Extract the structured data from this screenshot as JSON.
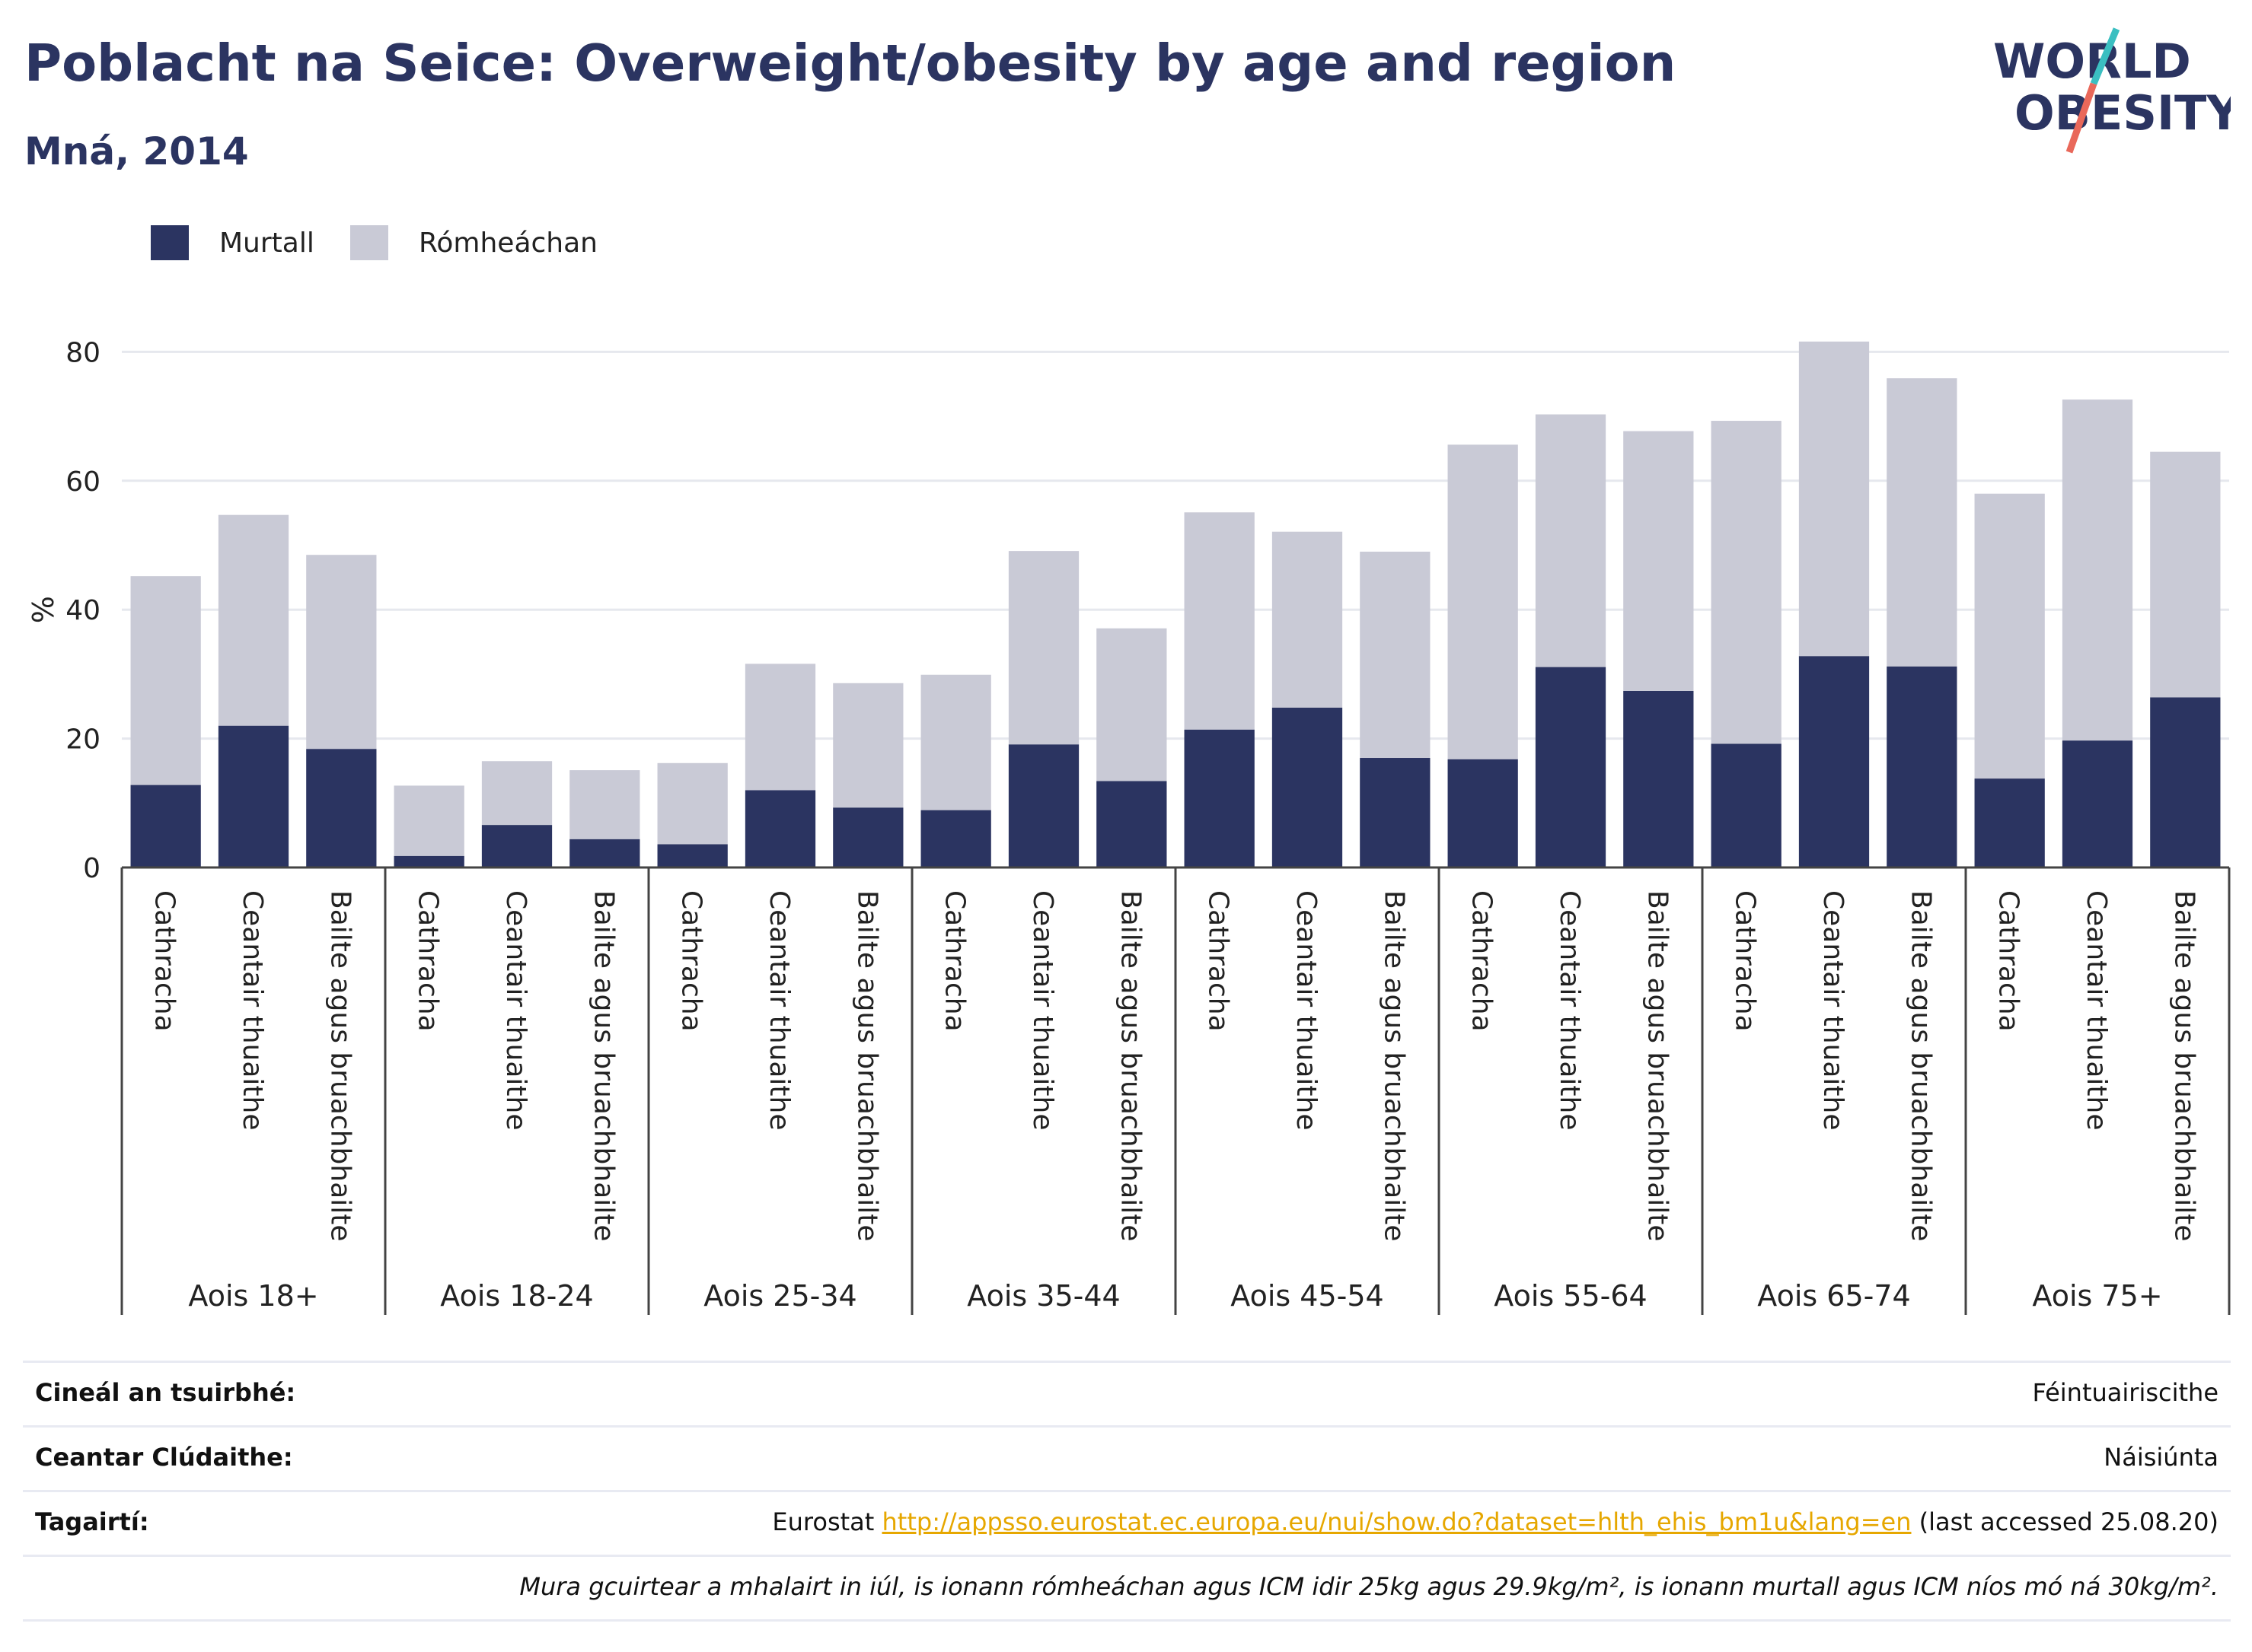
{
  "header": {
    "title": "Poblacht na Seice: Overweight/obesity by age and region",
    "subtitle": "Mná, 2014"
  },
  "logo": {
    "line1": "WORLD",
    "line2": "OBESITY",
    "icon": "world-obesity-logo"
  },
  "colors": {
    "obese": "#2b3461",
    "overweight": "#c9cad6",
    "title": "#2b3461",
    "link": "#e6a700",
    "logo_teal": "#3bbfc1",
    "logo_coral": "#e9685a"
  },
  "chart_data": {
    "type": "bar",
    "stacked": true,
    "ylabel": "%",
    "ylim": [
      0,
      85
    ],
    "yticks": [
      0,
      20,
      40,
      60,
      80
    ],
    "grid": true,
    "legend_position": "top-left",
    "groups": [
      "Aois 18+",
      "Aois 18-24",
      "Aois 25-34",
      "Aois 35-44",
      "Aois 45-54",
      "Aois 55-64",
      "Aois 65-74",
      "Aois 75+"
    ],
    "subcategories": [
      "Cathracha",
      "Ceantair thuaithe",
      "Bailte agus bruachbhailte"
    ],
    "series": [
      {
        "name": "Murtall",
        "values": [
          12.8,
          22.0,
          18.4,
          1.8,
          6.6,
          4.4,
          3.6,
          12.0,
          9.3,
          8.9,
          19.1,
          13.4,
          21.4,
          24.8,
          17.0,
          16.8,
          31.1,
          27.4,
          19.2,
          32.8,
          31.2,
          13.8,
          19.7,
          26.4
        ]
      },
      {
        "name": "Rómheáchan",
        "values": [
          32.4,
          32.7,
          30.1,
          10.9,
          9.9,
          10.7,
          12.6,
          19.6,
          19.3,
          21.0,
          30.0,
          23.7,
          33.7,
          27.3,
          32.0,
          48.8,
          39.2,
          40.3,
          50.1,
          48.8,
          44.7,
          44.2,
          52.9,
          38.1
        ]
      }
    ]
  },
  "info": {
    "survey_type_label": "Cineál an tsuirbhé:",
    "survey_type_value": "Féintuairiscithe",
    "coverage_label": "Ceantar Clúdaithe:",
    "coverage_value": "Náisiúnta",
    "references_label": "Tagairtí:",
    "references_prefix": "Eurostat ",
    "references_link": "http://appsso.eurostat.ec.europa.eu/nui/show.do?dataset=hlth_ehis_bm1u&lang=en",
    "references_suffix": " (last accessed 25.08.20)",
    "note": "Mura gcuirtear a mhalairt in iúl, is ionann rómheáchan agus ICM idir 25kg agus 29.9kg/m², is ionann murtall agus ICM níos mó ná 30kg/m²."
  }
}
